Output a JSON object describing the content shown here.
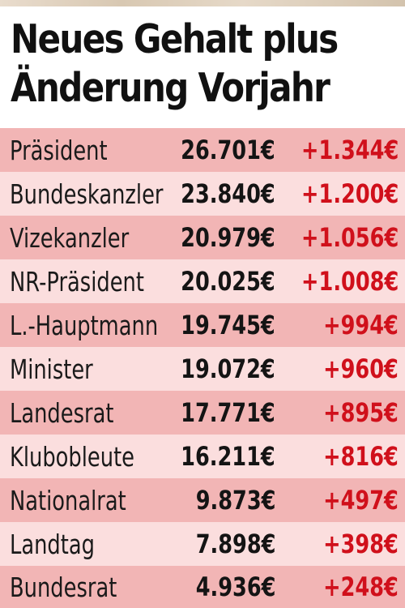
{
  "title": {
    "line1": "Neues Gehalt plus",
    "line2": "Änderung Vorjahr"
  },
  "colors": {
    "row_odd": "#f2b5b5",
    "row_even": "#fbdede",
    "change_text": "#d0101b",
    "text": "#141414"
  },
  "chart_data": {
    "type": "table",
    "title": "Neues Gehalt plus Änderung Vorjahr",
    "columns": [
      "",
      "",
      ""
    ],
    "rows": [
      {
        "label": "Präsident",
        "salary": "26.701€",
        "change": "+1.344€"
      },
      {
        "label": "Bundeskanzler",
        "salary": "23.840€",
        "change": "+1.200€"
      },
      {
        "label": "Vizekanzler",
        "salary": "20.979€",
        "change": "+1.056€"
      },
      {
        "label": "NR-Präsident",
        "salary": "20.025€",
        "change": "+1.008€"
      },
      {
        "label": "L.-Hauptmann",
        "salary": "19.745€",
        "change": "+994€"
      },
      {
        "label": "Minister",
        "salary": "19.072€",
        "change": "+960€"
      },
      {
        "label": "Landesrat",
        "salary": "17.771€",
        "change": "+895€"
      },
      {
        "label": "Klubobleute",
        "salary": "16.211€",
        "change": "+816€"
      },
      {
        "label": "Nationalrat",
        "salary": "9.873€",
        "change": "+497€"
      },
      {
        "label": "Landtag",
        "salary": "7.898€",
        "change": "+398€"
      },
      {
        "label": "Bundesrat",
        "salary": "4.936€",
        "change": "+248€"
      }
    ],
    "salary_values": [
      26701,
      23840,
      20979,
      20025,
      19745,
      19072,
      17771,
      16211,
      9873,
      7898,
      4936
    ],
    "change_values": [
      1344,
      1200,
      1056,
      1008,
      994,
      960,
      895,
      816,
      497,
      398,
      248
    ]
  }
}
